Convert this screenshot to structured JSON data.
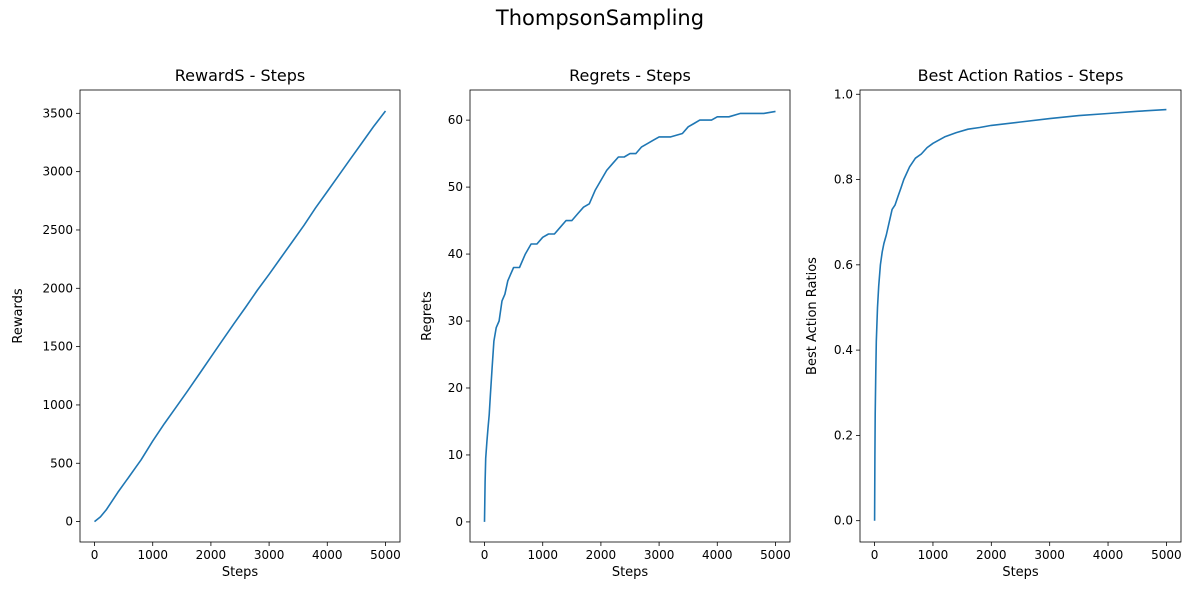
{
  "figure": {
    "title": "ThompsonSampling",
    "line_color": "#1f77b4"
  },
  "chart_data": [
    {
      "type": "line",
      "title": "RewardS - Steps",
      "xlabel": "Steps",
      "ylabel": "Rewards",
      "xlim": [
        -250,
        5250
      ],
      "ylim": [
        -175,
        3700
      ],
      "xticks": [
        0,
        1000,
        2000,
        3000,
        4000,
        5000
      ],
      "yticks": [
        0,
        500,
        1000,
        1500,
        2000,
        2500,
        3000,
        3500
      ],
      "grid": false,
      "series": [
        {
          "x": [
            0,
            100,
            200,
            300,
            400,
            500,
            600,
            700,
            800,
            900,
            1000,
            1200,
            1400,
            1600,
            1800,
            2000,
            2200,
            2400,
            2600,
            2800,
            3000,
            3200,
            3400,
            3600,
            3800,
            4000,
            4200,
            4400,
            4600,
            4800,
            5000
          ],
          "y": [
            0,
            40,
            100,
            175,
            250,
            320,
            390,
            460,
            530,
            610,
            690,
            840,
            980,
            1120,
            1265,
            1410,
            1555,
            1700,
            1840,
            1985,
            2120,
            2260,
            2400,
            2540,
            2690,
            2830,
            2970,
            3110,
            3250,
            3390,
            3520
          ]
        }
      ]
    },
    {
      "type": "line",
      "title": "Regrets - Steps",
      "xlabel": "Steps",
      "ylabel": "Regrets",
      "xlim": [
        -250,
        5250
      ],
      "ylim": [
        -3,
        64.5
      ],
      "xticks": [
        0,
        1000,
        2000,
        3000,
        4000,
        5000
      ],
      "yticks": [
        0,
        10,
        20,
        30,
        40,
        50,
        60
      ],
      "grid": false,
      "series": [
        {
          "x": [
            0,
            5,
            10,
            20,
            40,
            60,
            80,
            100,
            130,
            160,
            200,
            250,
            300,
            350,
            400,
            450,
            500,
            600,
            700,
            800,
            900,
            1000,
            1100,
            1200,
            1300,
            1400,
            1500,
            1600,
            1700,
            1800,
            1900,
            2000,
            2100,
            2200,
            2300,
            2400,
            2500,
            2600,
            2700,
            2800,
            2900,
            3000,
            3200,
            3400,
            3500,
            3600,
            3700,
            3800,
            3900,
            4000,
            4200,
            4400,
            4600,
            4800,
            5000
          ],
          "y": [
            0,
            3,
            6,
            9.5,
            12,
            14,
            16,
            19,
            23,
            27,
            29,
            30,
            33,
            34,
            36,
            37,
            38,
            38,
            40,
            41.5,
            41.5,
            42.5,
            43,
            43,
            44,
            45,
            45,
            46,
            47,
            47.5,
            49.5,
            51,
            52.5,
            53.5,
            54.5,
            54.5,
            55,
            55,
            56,
            56.5,
            57,
            57.5,
            57.5,
            58,
            59,
            59.5,
            60,
            60,
            60,
            60.5,
            60.5,
            61,
            61,
            61,
            61.3
          ]
        }
      ]
    },
    {
      "type": "line",
      "title": "Best Action Ratios - Steps",
      "xlabel": "Steps",
      "ylabel": "Best Action Ratios",
      "xlim": [
        -250,
        5250
      ],
      "ylim": [
        -0.05,
        1.01
      ],
      "xticks": [
        0,
        1000,
        2000,
        3000,
        4000,
        5000
      ],
      "yticks": [
        0.0,
        0.2,
        0.4,
        0.6,
        0.8,
        1.0
      ],
      "ytick_labels": [
        "0.0",
        "0.2",
        "0.4",
        "0.6",
        "0.8",
        "1.0"
      ],
      "grid": false,
      "series": [
        {
          "x": [
            0,
            5,
            10,
            20,
            30,
            50,
            70,
            100,
            130,
            160,
            200,
            250,
            300,
            350,
            400,
            450,
            500,
            600,
            700,
            800,
            900,
            1000,
            1200,
            1400,
            1600,
            1800,
            2000,
            2500,
            3000,
            3500,
            4000,
            4500,
            5000
          ],
          "y": [
            0,
            0.15,
            0.25,
            0.35,
            0.42,
            0.5,
            0.55,
            0.6,
            0.63,
            0.65,
            0.67,
            0.7,
            0.73,
            0.74,
            0.76,
            0.78,
            0.8,
            0.83,
            0.85,
            0.86,
            0.875,
            0.885,
            0.9,
            0.91,
            0.918,
            0.922,
            0.927,
            0.935,
            0.943,
            0.95,
            0.955,
            0.96,
            0.964
          ]
        }
      ]
    }
  ]
}
